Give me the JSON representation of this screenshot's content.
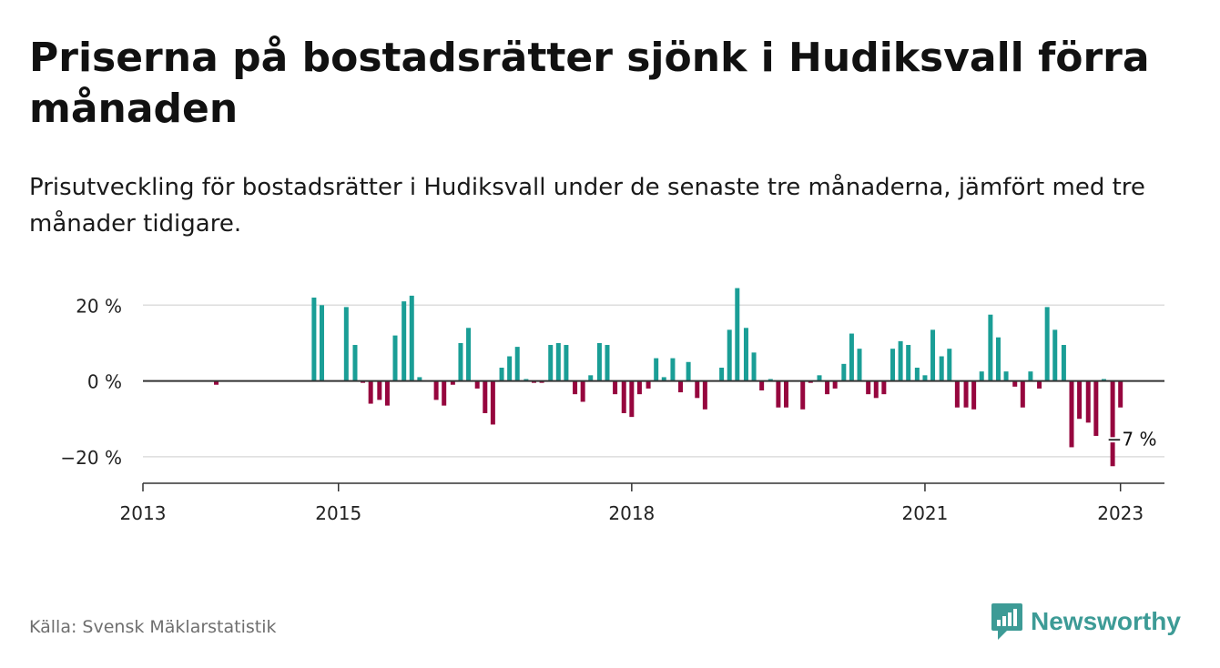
{
  "title": "Priserna på bostadsrätter sjönk i Hudiksvall förra månaden",
  "subtitle": "Prisutveckling för bostadsrätter i Hudiksvall under de senaste tre månaderna, jämfört med tre månader tidigare.",
  "source": "Källa: Svensk Mäklarstatistik",
  "brand": "Newsworthy",
  "colors": {
    "positive": "#1a9e96",
    "negative": "#96063e",
    "zero_line": "#333333",
    "grid": "#dddddd",
    "brand": "#3d9b96"
  },
  "chart_data": {
    "type": "bar",
    "x_unit": "year",
    "xlim": [
      2013,
      2023.45
    ],
    "ylim": [
      -27,
      28
    ],
    "grid": true,
    "y_ticks": [
      {
        "value": 20,
        "label": "20 %"
      },
      {
        "value": 0,
        "label": "0 %"
      },
      {
        "value": -20,
        "label": "−20 %"
      }
    ],
    "x_ticks": [
      {
        "value": 2013,
        "label": "2013"
      },
      {
        "value": 2015,
        "label": "2015"
      },
      {
        "value": 2018,
        "label": "2018"
      },
      {
        "value": 2021,
        "label": "2021"
      },
      {
        "value": 2023,
        "label": "2023"
      }
    ],
    "x": [
      2013.75,
      2014.75,
      2014.83,
      2015.08,
      2015.17,
      2015.25,
      2015.33,
      2015.42,
      2015.5,
      2015.58,
      2015.67,
      2015.75,
      2015.83,
      2016.0,
      2016.08,
      2016.17,
      2016.25,
      2016.33,
      2016.42,
      2016.5,
      2016.58,
      2016.67,
      2016.75,
      2016.83,
      2016.92,
      2017.0,
      2017.08,
      2017.17,
      2017.25,
      2017.33,
      2017.42,
      2017.5,
      2017.58,
      2017.67,
      2017.75,
      2017.83,
      2017.92,
      2018.0,
      2018.08,
      2018.17,
      2018.25,
      2018.33,
      2018.42,
      2018.5,
      2018.58,
      2018.67,
      2018.75,
      2018.92,
      2019.0,
      2019.08,
      2019.17,
      2019.25,
      2019.33,
      2019.42,
      2019.5,
      2019.58,
      2019.75,
      2019.83,
      2019.92,
      2020.0,
      2020.08,
      2020.17,
      2020.25,
      2020.33,
      2020.42,
      2020.5,
      2020.58,
      2020.67,
      2020.75,
      2020.83,
      2020.92,
      2021.0,
      2021.08,
      2021.17,
      2021.25,
      2021.33,
      2021.42,
      2021.5,
      2021.58,
      2021.67,
      2021.75,
      2021.83,
      2021.92,
      2022.0,
      2022.08,
      2022.17,
      2022.25,
      2022.33,
      2022.42,
      2022.5,
      2022.58,
      2022.67,
      2022.75,
      2022.83,
      2022.92,
      2023.0
    ],
    "values": [
      -1,
      22,
      20,
      19.5,
      9.5,
      -0.5,
      -6,
      -5,
      -6.5,
      12,
      21,
      22.5,
      1,
      -5,
      -6.5,
      -1,
      10,
      14,
      -2,
      -8.5,
      -11.5,
      3.5,
      6.5,
      9,
      0.5,
      -0.5,
      -0.5,
      9.5,
      10,
      9.5,
      -3.5,
      -5.5,
      1.5,
      10,
      9.5,
      -3.5,
      -8.5,
      -9.5,
      -3.5,
      -2,
      6,
      1,
      6,
      -3,
      5,
      -4.5,
      -7.5,
      3.5,
      13.5,
      24.5,
      14,
      7.5,
      -2.5,
      0.5,
      -7,
      -7,
      -7.5,
      -0.5,
      1.5,
      -3.5,
      -2,
      4.5,
      12.5,
      8.5,
      -3.5,
      -4.5,
      -3.5,
      8.5,
      10.5,
      9.5,
      3.5,
      1.5,
      13.5,
      6.5,
      8.5,
      -7,
      -7,
      -7.5,
      2.5,
      17.5,
      11.5,
      2.5,
      -1.5,
      -7,
      2.5,
      -2,
      19.5,
      13.5,
      9.5,
      -17.5,
      -10,
      -11,
      -14.5,
      0.5,
      -22.5,
      -7
    ],
    "annotation": {
      "x": 2023.0,
      "value": -7,
      "label": "−7 %"
    }
  }
}
